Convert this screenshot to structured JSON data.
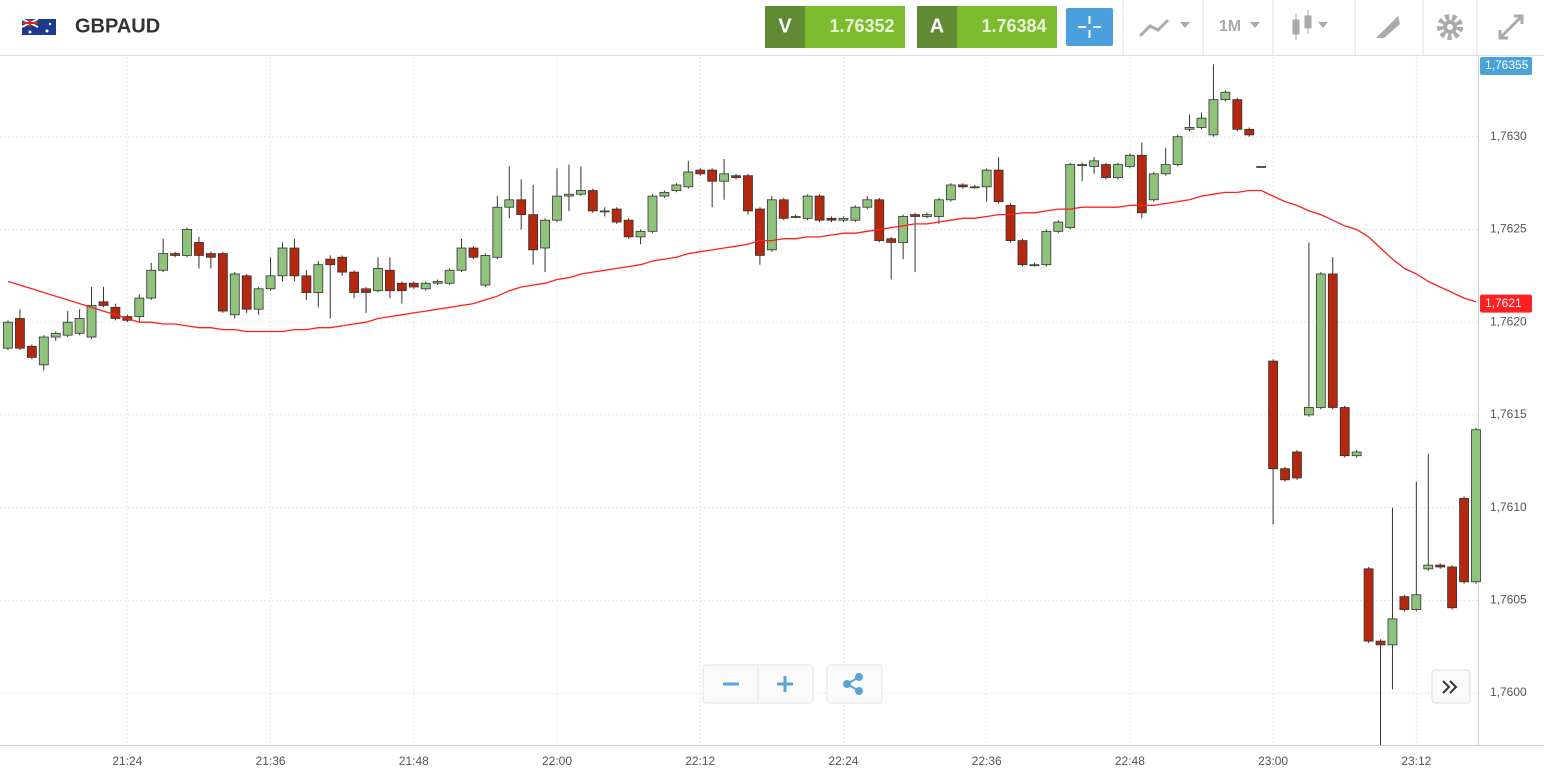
{
  "header": {
    "instrument": "GBPAUD",
    "bid_letter": "V",
    "bid": "1.76352",
    "ask_letter": "A",
    "ask": "1.76384",
    "timeframe": "1M"
  },
  "chart_data": {
    "type": "candlestick",
    "categories": [
      null,
      null,
      null,
      null,
      null,
      null,
      null,
      null,
      null,
      null,
      "21:24",
      null,
      null,
      null,
      null,
      null,
      null,
      null,
      null,
      null,
      null,
      null,
      "21:36",
      null,
      null,
      null,
      null,
      null,
      null,
      null,
      null,
      null,
      null,
      null,
      "21:48",
      null,
      null,
      null,
      null,
      null,
      null,
      null,
      null,
      null,
      null,
      null,
      "22:00",
      null,
      null,
      null,
      null,
      null,
      null,
      null,
      null,
      null,
      null,
      null,
      "22:12",
      null,
      null,
      null,
      null,
      null,
      null,
      null,
      null,
      null,
      null,
      null,
      "22:24",
      null,
      null,
      null,
      null,
      null,
      null,
      null,
      null,
      null,
      null,
      null,
      "22:36",
      null,
      null,
      null,
      null,
      null,
      null,
      null,
      null,
      null,
      null,
      null,
      "22:48",
      null,
      null,
      null,
      null,
      null,
      null,
      null,
      null,
      null,
      null,
      null,
      "23:00",
      null,
      null,
      null,
      null,
      null,
      null,
      null,
      null,
      null,
      null,
      null,
      "23:12",
      null,
      null,
      null,
      null,
      null
    ],
    "open": [
      1.76186,
      1.76202,
      1.76187,
      1.76177,
      1.76192,
      1.76193,
      1.76194,
      1.76192,
      1.76211,
      1.76208,
      1.76203,
      1.76203,
      1.76213,
      1.76228,
      1.76237,
      1.76236,
      1.76243,
      1.76237,
      1.76237,
      1.76204,
      1.76225,
      1.76207,
      1.76218,
      1.76225,
      1.7624,
      1.76225,
      1.76216,
      1.76234,
      1.76235,
      1.76227,
      1.76218,
      1.76217,
      1.76228,
      1.76221,
      1.76221,
      1.76218,
      1.76221,
      1.76221,
      1.76228,
      1.7624,
      1.7622,
      1.76235,
      1.76262,
      1.76266,
      1.76258,
      1.7624,
      1.76255,
      1.76268,
      1.76269,
      1.76271,
      1.7626,
      1.76261,
      1.76255,
      1.76246,
      1.76249,
      1.76268,
      1.76271,
      1.76273,
      1.76282,
      1.76282,
      1.76276,
      1.76279,
      1.76279,
      1.76261,
      1.76239,
      1.76266,
      1.76257,
      1.76256,
      1.76268,
      1.76256,
      1.76255,
      1.76255,
      1.76262,
      1.76266,
      1.76245,
      1.76243,
      1.76258,
      1.76257,
      1.76257,
      1.76266,
      1.76274,
      1.76273,
      1.76273,
      1.76282,
      1.76263,
      1.76244,
      1.76231,
      1.76231,
      1.76249,
      1.76251,
      1.76285,
      1.76284,
      1.76285,
      1.76278,
      1.76284,
      1.7629,
      1.76266,
      1.7628,
      1.76285,
      1.76304,
      1.76305,
      1.76301,
      1.7632,
      1.7632,
      1.76304,
      1.76284,
      1.76179,
      1.76121,
      1.7613,
      1.7615,
      1.76154,
      1.76226,
      1.76154,
      1.76128,
      1.76067,
      1.76028,
      1.76026,
      1.76052,
      1.76045,
      1.76067,
      1.76069,
      1.76068,
      1.76105,
      1.7606
    ],
    "high": [
      1.76201,
      1.76207,
      1.76188,
      1.76193,
      1.76195,
      1.76206,
      1.76207,
      1.76219,
      1.76219,
      1.7621,
      1.76204,
      1.76215,
      1.76232,
      1.76245,
      1.76238,
      1.76251,
      1.76246,
      1.76238,
      1.76238,
      1.76227,
      1.76226,
      1.76219,
      1.76235,
      1.76243,
      1.76245,
      1.76228,
      1.76233,
      1.76236,
      1.76236,
      1.76228,
      1.76219,
      1.76235,
      1.76235,
      1.76222,
      1.76222,
      1.76222,
      1.76223,
      1.76229,
      1.76245,
      1.76241,
      1.76237,
      1.76268,
      1.76284,
      1.76277,
      1.76274,
      1.76256,
      1.76283,
      1.76285,
      1.76284,
      1.76272,
      1.76262,
      1.76262,
      1.76256,
      1.7625,
      1.76269,
      1.76271,
      1.76275,
      1.76287,
      1.76283,
      1.76283,
      1.76288,
      1.7628,
      1.7628,
      1.76262,
      1.76268,
      1.76267,
      1.76258,
      1.76269,
      1.76269,
      1.76257,
      1.76257,
      1.76263,
      1.76268,
      1.76267,
      1.76246,
      1.76258,
      1.76259,
      1.76259,
      1.76267,
      1.76275,
      1.76275,
      1.76274,
      1.76283,
      1.76289,
      1.76264,
      1.76245,
      1.76232,
      1.7625,
      1.76255,
      1.76286,
      1.76286,
      1.76289,
      1.76286,
      1.76286,
      1.76291,
      1.76297,
      1.76281,
      1.76294,
      1.76301,
      1.76312,
      1.76313,
      1.76339,
      1.76325,
      1.76321,
      1.76305,
      1.76284,
      1.7618,
      1.76122,
      1.76131,
      1.76243,
      1.76227,
      1.76235,
      1.76155,
      1.76131,
      1.76068,
      1.76029,
      1.761,
      1.76053,
      1.76114,
      1.76129,
      1.7607,
      1.76069,
      1.76106,
      1.76143
    ],
    "low": [
      1.76185,
      1.76185,
      1.7618,
      1.76174,
      1.7619,
      1.76192,
      1.76193,
      1.76191,
      1.76208,
      1.76201,
      1.762,
      1.762,
      1.76212,
      1.76227,
      1.76235,
      1.76235,
      1.76229,
      1.76229,
      1.76205,
      1.76202,
      1.76205,
      1.76204,
      1.76217,
      1.76222,
      1.76222,
      1.76212,
      1.76208,
      1.76202,
      1.76225,
      1.76213,
      1.76205,
      1.76216,
      1.76213,
      1.7621,
      1.76218,
      1.76217,
      1.7622,
      1.7622,
      1.76227,
      1.76234,
      1.76219,
      1.76234,
      1.76256,
      1.7625,
      1.76231,
      1.76227,
      1.76254,
      1.7626,
      1.76268,
      1.76259,
      1.76257,
      1.76253,
      1.76245,
      1.76242,
      1.76248,
      1.76267,
      1.7627,
      1.76272,
      1.76279,
      1.76262,
      1.76266,
      1.76277,
      1.76258,
      1.76231,
      1.76238,
      1.76255,
      1.76256,
      1.76255,
      1.76254,
      1.76254,
      1.76254,
      1.76254,
      1.76261,
      1.76243,
      1.76223,
      1.76234,
      1.76227,
      1.76256,
      1.76253,
      1.76265,
      1.76272,
      1.76272,
      1.76265,
      1.76264,
      1.76243,
      1.7623,
      1.7623,
      1.7623,
      1.76248,
      1.7625,
      1.76276,
      1.7628,
      1.76277,
      1.76277,
      1.76283,
      1.76256,
      1.76265,
      1.76279,
      1.76284,
      1.76303,
      1.76304,
      1.763,
      1.76319,
      1.76303,
      1.763,
      1.76284,
      1.76091,
      1.76114,
      1.76115,
      1.76149,
      1.76153,
      1.76153,
      1.76127,
      1.76127,
      1.76027,
      1.75972,
      1.76002,
      1.76044,
      1.76044,
      1.76066,
      1.76067,
      1.76045,
      1.76059,
      1.76059
    ],
    "close": [
      1.762,
      1.76186,
      1.76181,
      1.76192,
      1.76194,
      1.762,
      1.76202,
      1.76209,
      1.76209,
      1.76202,
      1.76201,
      1.76213,
      1.76228,
      1.76237,
      1.76236,
      1.7625,
      1.76236,
      1.76235,
      1.76206,
      1.76226,
      1.76207,
      1.76218,
      1.76225,
      1.7624,
      1.76225,
      1.76216,
      1.76231,
      1.76231,
      1.76227,
      1.76216,
      1.76216,
      1.76229,
      1.76217,
      1.76217,
      1.76219,
      1.76221,
      1.76222,
      1.76228,
      1.7624,
      1.76235,
      1.76236,
      1.76262,
      1.76266,
      1.76258,
      1.76239,
      1.76255,
      1.76268,
      1.76269,
      1.76271,
      1.7626,
      1.7626,
      1.76254,
      1.76246,
      1.76249,
      1.76268,
      1.7627,
      1.76274,
      1.76281,
      1.7628,
      1.76276,
      1.7628,
      1.76278,
      1.7626,
      1.76236,
      1.76266,
      1.76256,
      1.76257,
      1.76268,
      1.76255,
      1.76255,
      1.76256,
      1.76262,
      1.76266,
      1.76244,
      1.76243,
      1.76257,
      1.76257,
      1.76258,
      1.76266,
      1.76274,
      1.76273,
      1.76273,
      1.76282,
      1.76265,
      1.76244,
      1.76231,
      1.76231,
      1.76249,
      1.76254,
      1.76285,
      1.76285,
      1.76287,
      1.76278,
      1.76285,
      1.7629,
      1.76259,
      1.7628,
      1.76285,
      1.763,
      1.76305,
      1.7631,
      1.7632,
      1.76324,
      1.76304,
      1.76301,
      1.76284,
      1.76121,
      1.76115,
      1.76116,
      1.76154,
      1.76226,
      1.76154,
      1.76128,
      1.7613,
      1.76028,
      1.76026,
      1.7604,
      1.76045,
      1.76053,
      1.76069,
      1.76068,
      1.76046,
      1.7606,
      1.76142
    ],
    "up_color": "#8fc27b",
    "down_color": "#b3280e",
    "series": [
      {
        "color": "#ff2020",
        "values": [
          1.76222,
          1.7622,
          1.76218,
          1.76216,
          1.76214,
          1.76212,
          1.7621,
          1.76208,
          1.76206,
          1.76204,
          1.76202,
          1.762,
          1.762,
          1.76199,
          1.76199,
          1.76198,
          1.76197,
          1.76197,
          1.76196,
          1.76196,
          1.76195,
          1.76195,
          1.76195,
          1.76195,
          1.76196,
          1.76196,
          1.76197,
          1.76197,
          1.76198,
          1.76199,
          1.762,
          1.76202,
          1.76203,
          1.76204,
          1.76205,
          1.76206,
          1.76207,
          1.76208,
          1.76209,
          1.7621,
          1.76212,
          1.76214,
          1.76217,
          1.76219,
          1.7622,
          1.76221,
          1.76223,
          1.76224,
          1.76226,
          1.76227,
          1.76228,
          1.76229,
          1.7623,
          1.76231,
          1.76233,
          1.76234,
          1.76235,
          1.76237,
          1.76238,
          1.76239,
          1.7624,
          1.76241,
          1.76242,
          1.76244,
          1.76244,
          1.76245,
          1.76245,
          1.76246,
          1.76246,
          1.76247,
          1.76248,
          1.76248,
          1.76249,
          1.7625,
          1.76251,
          1.76252,
          1.76253,
          1.76253,
          1.76254,
          1.76255,
          1.76256,
          1.76256,
          1.76257,
          1.76258,
          1.76258,
          1.76259,
          1.76259,
          1.7626,
          1.76261,
          1.76261,
          1.76262,
          1.76262,
          1.76262,
          1.76262,
          1.76263,
          1.76263,
          1.76263,
          1.76264,
          1.76265,
          1.76266,
          1.76268,
          1.76269,
          1.7627,
          1.7627,
          1.76271,
          1.76271,
          1.76268,
          1.76265,
          1.76263,
          1.7626,
          1.76258,
          1.76255,
          1.76252,
          1.7625,
          1.76246,
          1.7624,
          1.76234,
          1.76229,
          1.76226,
          1.76222,
          1.76219,
          1.76216,
          1.76213,
          1.76211
        ]
      }
    ],
    "ylim": [
      1.75972,
      1.76343
    ],
    "yticks": [
      {
        "value": 1.76,
        "label": "1,7600"
      },
      {
        "value": 1.7605,
        "label": "1,7605"
      },
      {
        "value": 1.761,
        "label": "1,7610"
      },
      {
        "value": 1.7615,
        "label": "1,7615"
      },
      {
        "value": 1.762,
        "label": "1,7620"
      },
      {
        "value": 1.7625,
        "label": "1,7625"
      },
      {
        "value": 1.763,
        "label": "1,7630"
      }
    ],
    "grid": true,
    "current_price": {
      "value": 1.76355,
      "label": "1,76355"
    },
    "ma_price": {
      "value": 1.7621,
      "label": "1,7621"
    }
  }
}
